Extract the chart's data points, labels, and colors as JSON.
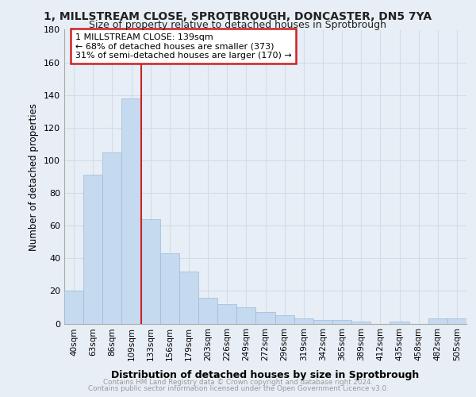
{
  "title_line1": "1, MILLSTREAM CLOSE, SPROTBROUGH, DONCASTER, DN5 7YA",
  "title_line2": "Size of property relative to detached houses in Sprotbrough",
  "xlabel": "Distribution of detached houses by size in Sprotbrough",
  "ylabel": "Number of detached properties",
  "annotation_line1": "1 MILLSTREAM CLOSE: 139sqm",
  "annotation_line2": "← 68% of detached houses are smaller (373)",
  "annotation_line3": "31% of semi-detached houses are larger (170) →",
  "footer_line1": "Contains HM Land Registry data © Crown copyright and database right 2024.",
  "footer_line2": "Contains public sector information licensed under the Open Government Licence v3.0.",
  "categories": [
    "40sqm",
    "63sqm",
    "86sqm",
    "109sqm",
    "133sqm",
    "156sqm",
    "179sqm",
    "203sqm",
    "226sqm",
    "249sqm",
    "272sqm",
    "296sqm",
    "319sqm",
    "342sqm",
    "365sqm",
    "389sqm",
    "412sqm",
    "435sqm",
    "458sqm",
    "482sqm",
    "505sqm"
  ],
  "values": [
    20,
    91,
    105,
    138,
    64,
    43,
    32,
    16,
    12,
    10,
    7,
    5,
    3,
    2,
    2,
    1,
    0,
    1,
    0,
    3,
    3
  ],
  "vline_bin_index": 4,
  "bar_color": "#c5d9ef",
  "bar_edge_color": "#9bbbd8",
  "vline_color": "#cc2222",
  "annotation_box_edgecolor": "#cc2222",
  "grid_color": "#d0dce8",
  "ylim_max": 180,
  "bg_color": "#e8eef6",
  "title_color": "#222222",
  "footer_color": "#999999"
}
